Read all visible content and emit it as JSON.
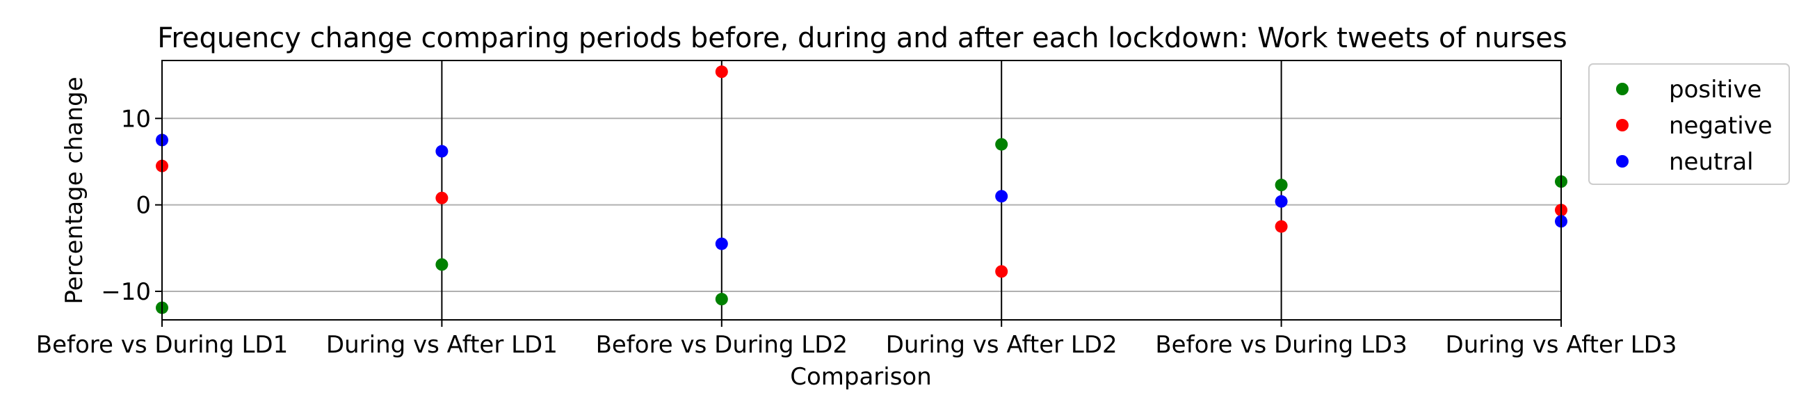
{
  "chart_data": {
    "type": "scatter",
    "title": "Frequency change comparing periods before, during and after each lockdown: Work tweets of nurses",
    "xlabel": "Comparison",
    "ylabel": "Percentage change",
    "categories": [
      "Before vs During LD1",
      "During vs After LD1",
      "Before vs During LD2",
      "During vs After LD2",
      "Before vs During LD3",
      "During vs After LD3"
    ],
    "ylim": [
      -13.3,
      16.7
    ],
    "yticks": [
      -10,
      0,
      10
    ],
    "ytick_labels": [
      "−10",
      "0",
      "10"
    ],
    "grid": "horizontal at y ticks",
    "category_lines": "vertical black line at each category",
    "legend_position": "outside right, top",
    "series": [
      {
        "name": "positive",
        "color": "#008000",
        "values": [
          -11.9,
          -6.9,
          -10.9,
          7.0,
          2.3,
          2.7
        ]
      },
      {
        "name": "negative",
        "color": "#ff0000",
        "values": [
          4.5,
          0.8,
          15.4,
          -7.7,
          -2.5,
          -0.6
        ]
      },
      {
        "name": "neutral",
        "color": "#0000ff",
        "values": [
          7.5,
          6.2,
          -4.5,
          1.0,
          0.4,
          -1.9
        ]
      }
    ]
  }
}
